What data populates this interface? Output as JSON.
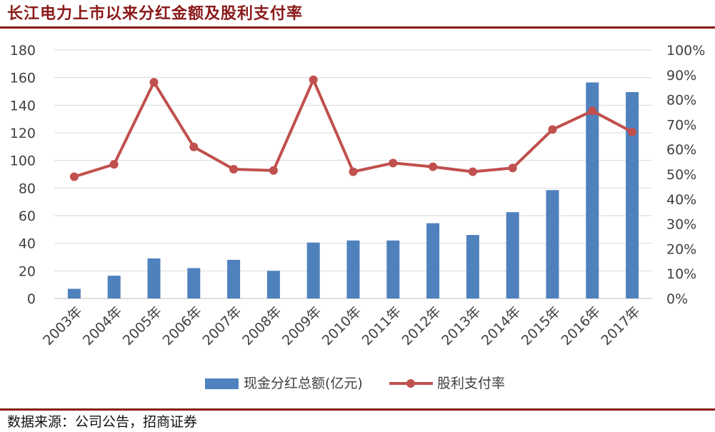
{
  "page": {
    "title": "长江电力上市以来分红金额及股利支付率",
    "source": "数据来源：公司公告，招商证券"
  },
  "colors": {
    "brand": "#8a1a1a",
    "bar": "#4f81bd",
    "line": "#c0504d",
    "grid": "#d9d9d9",
    "text": "#404040"
  },
  "chart_data": {
    "type": "bar",
    "categories": [
      "2003年",
      "2004年",
      "2005年",
      "2006年",
      "2007年",
      "2008年",
      "2009年",
      "2010年",
      "2011年",
      "2012年",
      "2013年",
      "2014年",
      "2015年",
      "2016年",
      "2017年"
    ],
    "series": [
      {
        "name": "现金分红总额(亿元)",
        "type": "bar",
        "axis": "left",
        "values": [
          7,
          16.5,
          29,
          22,
          28,
          20,
          40.5,
          42,
          42,
          54.5,
          46,
          62.5,
          78.5,
          156.5,
          149.5
        ]
      },
      {
        "name": "股利支付率",
        "type": "line",
        "axis": "right",
        "values": [
          0.49,
          0.54,
          0.87,
          0.61,
          0.52,
          0.515,
          0.88,
          0.51,
          0.545,
          0.53,
          0.51,
          0.525,
          0.68,
          0.755,
          0.67
        ]
      }
    ],
    "y_left": {
      "min": 0,
      "max": 180,
      "ticks": [
        0,
        20,
        40,
        60,
        80,
        100,
        120,
        140,
        160,
        180
      ]
    },
    "y_right": {
      "min": 0,
      "max": 1,
      "ticks": [
        "0%",
        "10%",
        "20%",
        "30%",
        "40%",
        "50%",
        "60%",
        "70%",
        "80%",
        "90%",
        "100%"
      ]
    },
    "grid": true,
    "legend_position": "bottom"
  }
}
